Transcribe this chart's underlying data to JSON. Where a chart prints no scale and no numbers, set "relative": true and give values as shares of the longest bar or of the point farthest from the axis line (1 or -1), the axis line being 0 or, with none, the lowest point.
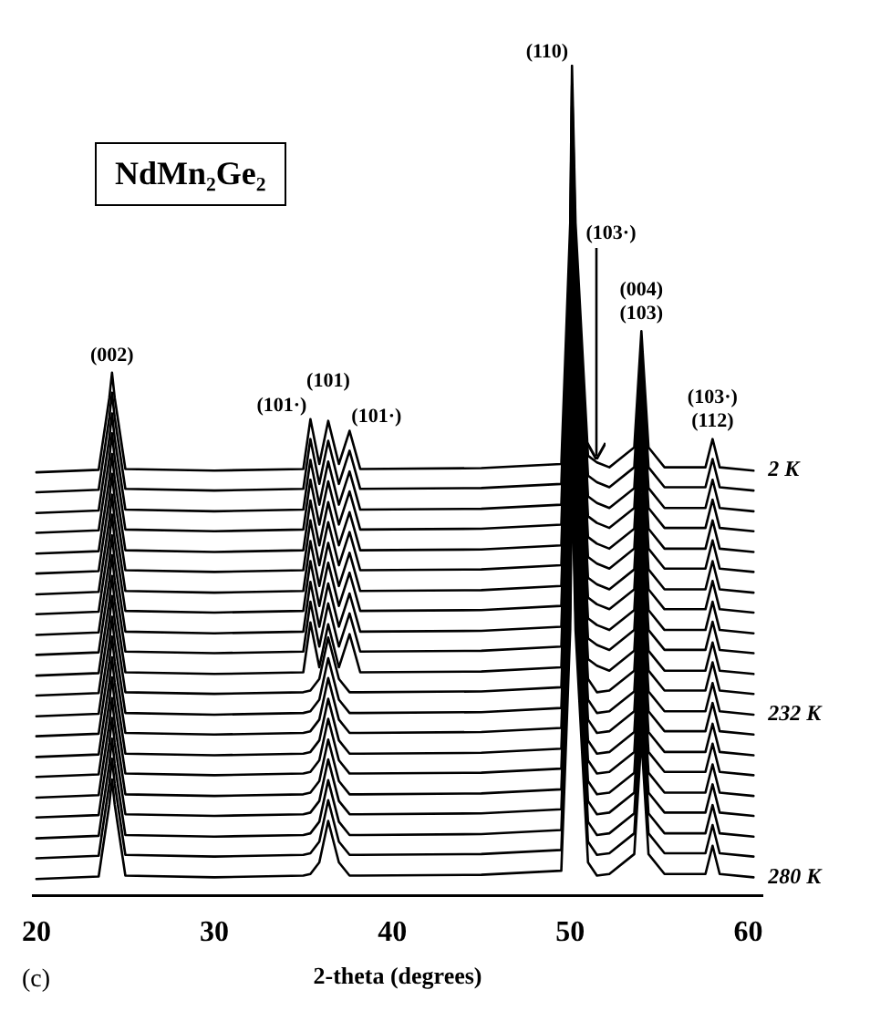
{
  "chart_data": {
    "type": "line",
    "title": "NdMn₂Ge₂",
    "xlabel": "2-theta (degrees)",
    "relative": true,
    "legend": false,
    "grid": false,
    "xlim": [
      19.8,
      60.8
    ],
    "xticks": [
      20,
      30,
      40,
      50,
      60
    ],
    "x": [
      20,
      23.5,
      24.1,
      24.25,
      24.4,
      25,
      30,
      35,
      35.4,
      35.9,
      36.4,
      37,
      37.6,
      38.2,
      45,
      49.5,
      50,
      50.1,
      50.3,
      51,
      51.5,
      52.2,
      53.6,
      54,
      54.4,
      55.3,
      57.6,
      58,
      58.4,
      60.3
    ],
    "series": [
      {
        "color": "#000000",
        "values": [
          0.51,
          0.513,
          0.6,
          0.63,
          0.6,
          0.514,
          0.512,
          0.514,
          0.574,
          0.52,
          0.572,
          0.52,
          0.56,
          0.514,
          0.515,
          0.52,
          0.81,
          1.0,
          0.81,
          0.53,
          0.522,
          0.516,
          0.54,
          0.68,
          0.54,
          0.516,
          0.516,
          0.55,
          0.516,
          0.512
        ]
      },
      {
        "color": "#000000",
        "values": [
          0.486,
          0.489,
          0.576,
          0.606,
          0.576,
          0.49,
          0.488,
          0.49,
          0.55,
          0.496,
          0.548,
          0.496,
          0.536,
          0.49,
          0.491,
          0.496,
          0.786,
          0.976,
          0.786,
          0.506,
          0.498,
          0.492,
          0.516,
          0.656,
          0.516,
          0.492,
          0.492,
          0.526,
          0.492,
          0.488
        ]
      },
      {
        "color": "#000000",
        "values": [
          0.461,
          0.464,
          0.551,
          0.581,
          0.551,
          0.465,
          0.463,
          0.465,
          0.525,
          0.471,
          0.523,
          0.471,
          0.511,
          0.465,
          0.466,
          0.471,
          0.761,
          0.951,
          0.761,
          0.481,
          0.473,
          0.467,
          0.491,
          0.631,
          0.491,
          0.467,
          0.467,
          0.501,
          0.467,
          0.463
        ]
      },
      {
        "color": "#000000",
        "values": [
          0.437,
          0.44,
          0.527,
          0.557,
          0.527,
          0.441,
          0.439,
          0.441,
          0.501,
          0.447,
          0.499,
          0.447,
          0.487,
          0.441,
          0.442,
          0.447,
          0.737,
          0.927,
          0.737,
          0.457,
          0.449,
          0.443,
          0.467,
          0.607,
          0.467,
          0.443,
          0.443,
          0.477,
          0.443,
          0.439
        ]
      },
      {
        "color": "#000000",
        "values": [
          0.412,
          0.415,
          0.502,
          0.532,
          0.502,
          0.416,
          0.414,
          0.416,
          0.476,
          0.422,
          0.474,
          0.422,
          0.462,
          0.416,
          0.417,
          0.422,
          0.712,
          0.902,
          0.712,
          0.432,
          0.424,
          0.418,
          0.442,
          0.582,
          0.442,
          0.418,
          0.418,
          0.452,
          0.418,
          0.414
        ]
      },
      {
        "color": "#000000",
        "values": [
          0.388,
          0.391,
          0.478,
          0.508,
          0.478,
          0.392,
          0.39,
          0.392,
          0.452,
          0.398,
          0.45,
          0.398,
          0.438,
          0.392,
          0.393,
          0.398,
          0.688,
          0.878,
          0.688,
          0.408,
          0.4,
          0.394,
          0.418,
          0.558,
          0.418,
          0.394,
          0.394,
          0.428,
          0.394,
          0.39
        ]
      },
      {
        "color": "#000000",
        "values": [
          0.363,
          0.366,
          0.453,
          0.483,
          0.453,
          0.367,
          0.365,
          0.367,
          0.427,
          0.373,
          0.425,
          0.373,
          0.413,
          0.367,
          0.368,
          0.373,
          0.663,
          0.853,
          0.663,
          0.383,
          0.375,
          0.369,
          0.393,
          0.533,
          0.393,
          0.369,
          0.369,
          0.403,
          0.369,
          0.365
        ]
      },
      {
        "color": "#000000",
        "values": [
          0.339,
          0.342,
          0.429,
          0.459,
          0.429,
          0.343,
          0.341,
          0.343,
          0.403,
          0.349,
          0.401,
          0.349,
          0.389,
          0.343,
          0.344,
          0.349,
          0.639,
          0.829,
          0.639,
          0.359,
          0.351,
          0.345,
          0.369,
          0.509,
          0.369,
          0.345,
          0.345,
          0.379,
          0.345,
          0.341
        ]
      },
      {
        "color": "#000000",
        "values": [
          0.314,
          0.317,
          0.404,
          0.434,
          0.404,
          0.318,
          0.316,
          0.318,
          0.378,
          0.324,
          0.376,
          0.324,
          0.364,
          0.318,
          0.319,
          0.324,
          0.614,
          0.804,
          0.614,
          0.334,
          0.326,
          0.32,
          0.344,
          0.484,
          0.344,
          0.32,
          0.32,
          0.354,
          0.32,
          0.316
        ]
      },
      {
        "color": "#000000",
        "values": [
          0.29,
          0.293,
          0.38,
          0.41,
          0.38,
          0.294,
          0.292,
          0.294,
          0.354,
          0.3,
          0.352,
          0.3,
          0.34,
          0.294,
          0.295,
          0.3,
          0.59,
          0.78,
          0.59,
          0.31,
          0.302,
          0.296,
          0.32,
          0.46,
          0.32,
          0.296,
          0.296,
          0.33,
          0.296,
          0.292
        ]
      },
      {
        "color": "#000000",
        "values": [
          0.265,
          0.268,
          0.355,
          0.385,
          0.355,
          0.269,
          0.267,
          0.269,
          0.329,
          0.275,
          0.327,
          0.275,
          0.315,
          0.269,
          0.27,
          0.275,
          0.565,
          0.755,
          0.565,
          0.285,
          0.277,
          0.271,
          0.295,
          0.435,
          0.295,
          0.271,
          0.271,
          0.305,
          0.271,
          0.267
        ]
      },
      {
        "color": "#000000",
        "values": [
          0.241,
          0.244,
          0.331,
          0.361,
          0.331,
          0.245,
          0.243,
          0.245,
          0.247,
          0.261,
          0.311,
          0.261,
          0.245,
          0.245,
          0.246,
          0.251,
          0.541,
          0.731,
          0.541,
          0.261,
          0.245,
          0.247,
          0.271,
          0.411,
          0.271,
          0.247,
          0.247,
          0.281,
          0.247,
          0.243
        ]
      },
      {
        "color": "#000000",
        "values": [
          0.216,
          0.219,
          0.306,
          0.336,
          0.306,
          0.22,
          0.218,
          0.22,
          0.222,
          0.236,
          0.286,
          0.236,
          0.22,
          0.22,
          0.221,
          0.226,
          0.516,
          0.706,
          0.516,
          0.236,
          0.22,
          0.222,
          0.246,
          0.386,
          0.246,
          0.222,
          0.222,
          0.256,
          0.222,
          0.218
        ]
      },
      {
        "color": "#000000",
        "values": [
          0.192,
          0.195,
          0.282,
          0.312,
          0.282,
          0.196,
          0.194,
          0.196,
          0.198,
          0.212,
          0.262,
          0.212,
          0.196,
          0.196,
          0.197,
          0.202,
          0.492,
          0.682,
          0.492,
          0.212,
          0.196,
          0.198,
          0.222,
          0.362,
          0.222,
          0.198,
          0.198,
          0.232,
          0.198,
          0.194
        ]
      },
      {
        "color": "#000000",
        "values": [
          0.167,
          0.17,
          0.257,
          0.287,
          0.257,
          0.171,
          0.169,
          0.171,
          0.173,
          0.187,
          0.237,
          0.187,
          0.171,
          0.171,
          0.172,
          0.177,
          0.467,
          0.657,
          0.467,
          0.187,
          0.171,
          0.173,
          0.197,
          0.337,
          0.197,
          0.173,
          0.173,
          0.207,
          0.173,
          0.169
        ]
      },
      {
        "color": "#000000",
        "values": [
          0.143,
          0.146,
          0.233,
          0.263,
          0.233,
          0.147,
          0.145,
          0.147,
          0.149,
          0.163,
          0.213,
          0.163,
          0.147,
          0.147,
          0.148,
          0.153,
          0.443,
          0.633,
          0.443,
          0.163,
          0.147,
          0.149,
          0.173,
          0.313,
          0.173,
          0.149,
          0.149,
          0.183,
          0.149,
          0.145
        ]
      },
      {
        "color": "#000000",
        "values": [
          0.118,
          0.121,
          0.208,
          0.238,
          0.208,
          0.122,
          0.12,
          0.122,
          0.124,
          0.138,
          0.188,
          0.138,
          0.122,
          0.122,
          0.123,
          0.128,
          0.418,
          0.608,
          0.418,
          0.138,
          0.122,
          0.124,
          0.148,
          0.288,
          0.148,
          0.124,
          0.124,
          0.158,
          0.124,
          0.12
        ]
      },
      {
        "color": "#000000",
        "values": [
          0.094,
          0.097,
          0.184,
          0.214,
          0.184,
          0.098,
          0.096,
          0.098,
          0.1,
          0.114,
          0.164,
          0.114,
          0.098,
          0.098,
          0.099,
          0.104,
          0.394,
          0.584,
          0.394,
          0.114,
          0.098,
          0.1,
          0.124,
          0.264,
          0.124,
          0.1,
          0.1,
          0.134,
          0.1,
          0.096
        ]
      },
      {
        "color": "#000000",
        "values": [
          0.069,
          0.072,
          0.159,
          0.189,
          0.159,
          0.073,
          0.071,
          0.073,
          0.075,
          0.089,
          0.139,
          0.089,
          0.073,
          0.073,
          0.074,
          0.079,
          0.369,
          0.559,
          0.369,
          0.089,
          0.073,
          0.075,
          0.099,
          0.239,
          0.099,
          0.075,
          0.075,
          0.109,
          0.075,
          0.071
        ]
      },
      {
        "color": "#000000",
        "values": [
          0.045,
          0.048,
          0.135,
          0.165,
          0.135,
          0.049,
          0.047,
          0.049,
          0.051,
          0.065,
          0.115,
          0.065,
          0.049,
          0.049,
          0.05,
          0.055,
          0.345,
          0.535,
          0.345,
          0.065,
          0.049,
          0.051,
          0.075,
          0.215,
          0.075,
          0.051,
          0.051,
          0.085,
          0.051,
          0.047
        ]
      },
      {
        "color": "#000000",
        "values": [
          0.02,
          0.023,
          0.11,
          0.14,
          0.11,
          0.024,
          0.022,
          0.024,
          0.026,
          0.04,
          0.09,
          0.04,
          0.024,
          0.024,
          0.025,
          0.03,
          0.32,
          0.51,
          0.32,
          0.04,
          0.024,
          0.026,
          0.05,
          0.19,
          0.05,
          0.026,
          0.026,
          0.06,
          0.026,
          0.022
        ]
      }
    ],
    "annotations": [
      {
        "text": "(002)",
        "x": 24.25,
        "y": 0.63
      },
      {
        "text": "(101·)",
        "x": 35.4,
        "y": 0.574
      },
      {
        "text": "(101)",
        "x": 36.4,
        "y": 0.572
      },
      {
        "text": "(101·)",
        "x": 37.6,
        "y": 0.56
      },
      {
        "text": "(110)",
        "x": 50.1,
        "y": 1.0
      },
      {
        "text": "(103·)",
        "x": 51.5,
        "y": 0.522
      },
      {
        "text": "(103)",
        "x": 54,
        "y": 0.68
      },
      {
        "text": "(004)",
        "x": 54,
        "y": 0.68
      },
      {
        "text": "(112)",
        "x": 58,
        "y": 0.55
      },
      {
        "text": "(103·)",
        "x": 58,
        "y": 0.55
      },
      {
        "text": "2 K",
        "x": 60.3,
        "y": 0.512
      },
      {
        "text": "232 K",
        "x": 60.3,
        "y": 0.218
      },
      {
        "text": "280 K",
        "x": 60.3,
        "y": 0.022
      },
      "(c)"
    ]
  }
}
